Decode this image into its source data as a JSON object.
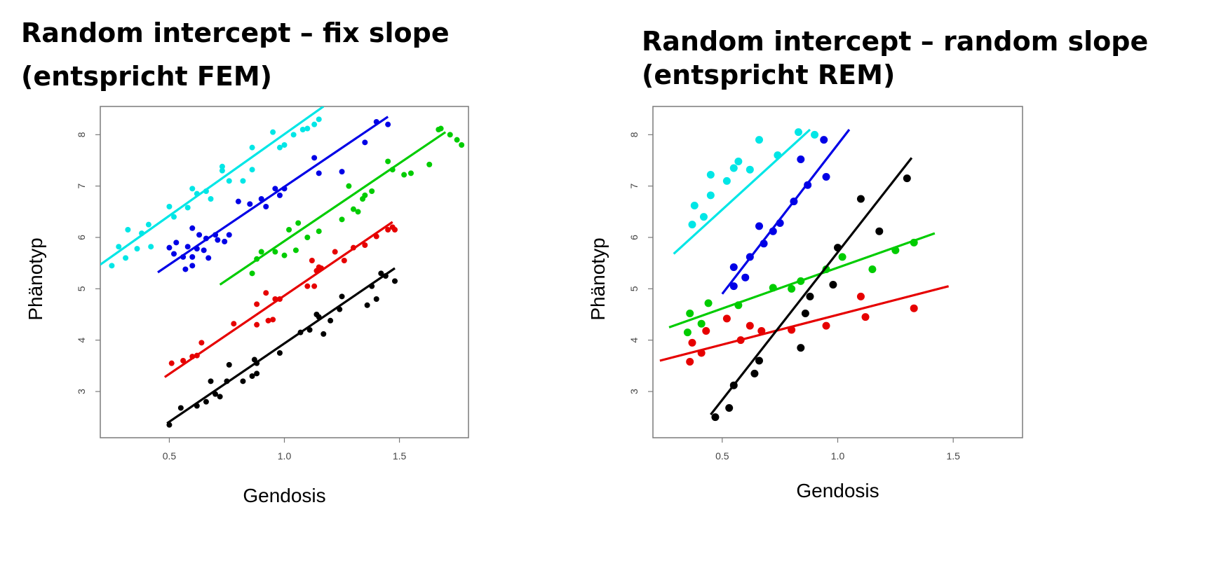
{
  "chart_data": [
    {
      "type": "scatter",
      "title": "Random intercept – fix slope",
      "subtitle": "(entspricht FEM)",
      "xlabel": "Gendosis",
      "ylabel": "Phänotyp",
      "xlim": [
        0.2,
        1.8
      ],
      "ylim": [
        2.1,
        8.55
      ],
      "xticks": [
        "0.5",
        "1.0",
        "1.5"
      ],
      "xtick_values": [
        0.5,
        1.0,
        1.5
      ],
      "yticks": [
        "3",
        "4",
        "5",
        "6",
        "7",
        "8"
      ],
      "ytick_values": [
        3,
        4,
        5,
        6,
        7,
        8
      ],
      "grid": false,
      "series": [
        {
          "color": "#00e6e6",
          "line": [
            [
              0.2,
              5.47
            ],
            [
              1.17,
              8.55
            ]
          ],
          "points": [
            [
              0.25,
              5.45
            ],
            [
              0.28,
              5.82
            ],
            [
              0.31,
              5.6
            ],
            [
              0.32,
              6.15
            ],
            [
              0.36,
              5.78
            ],
            [
              0.38,
              6.08
            ],
            [
              0.41,
              6.25
            ],
            [
              0.42,
              5.82
            ],
            [
              0.5,
              6.6
            ],
            [
              0.52,
              6.4
            ],
            [
              0.58,
              6.58
            ],
            [
              0.6,
              6.95
            ],
            [
              0.62,
              6.85
            ],
            [
              0.66,
              6.9
            ],
            [
              0.68,
              6.75
            ],
            [
              0.73,
              7.3
            ],
            [
              0.73,
              7.38
            ],
            [
              0.76,
              7.1
            ],
            [
              0.82,
              7.1
            ],
            [
              0.86,
              7.75
            ],
            [
              0.86,
              7.32
            ],
            [
              0.95,
              8.05
            ],
            [
              0.98,
              7.75
            ],
            [
              1.0,
              7.8
            ],
            [
              1.04,
              8.0
            ],
            [
              1.08,
              8.1
            ],
            [
              1.1,
              8.12
            ],
            [
              1.13,
              8.2
            ],
            [
              1.15,
              8.3
            ]
          ]
        },
        {
          "color": "#0000e6",
          "line": [
            [
              0.45,
              5.32
            ],
            [
              1.45,
              8.35
            ]
          ],
          "points": [
            [
              0.5,
              5.8
            ],
            [
              0.52,
              5.68
            ],
            [
              0.53,
              5.9
            ],
            [
              0.56,
              5.62
            ],
            [
              0.57,
              5.38
            ],
            [
              0.58,
              5.82
            ],
            [
              0.6,
              5.45
            ],
            [
              0.6,
              5.62
            ],
            [
              0.6,
              6.18
            ],
            [
              0.62,
              5.78
            ],
            [
              0.63,
              6.05
            ],
            [
              0.65,
              5.75
            ],
            [
              0.66,
              5.98
            ],
            [
              0.67,
              5.6
            ],
            [
              0.7,
              6.05
            ],
            [
              0.71,
              5.95
            ],
            [
              0.74,
              5.92
            ],
            [
              0.76,
              6.05
            ],
            [
              0.8,
              6.7
            ],
            [
              0.85,
              6.65
            ],
            [
              0.9,
              6.75
            ],
            [
              0.92,
              6.6
            ],
            [
              0.96,
              6.95
            ],
            [
              0.98,
              6.82
            ],
            [
              1.0,
              6.95
            ],
            [
              1.13,
              7.55
            ],
            [
              1.15,
              7.25
            ],
            [
              1.25,
              7.28
            ],
            [
              1.35,
              7.85
            ],
            [
              1.4,
              8.25
            ],
            [
              1.45,
              8.2
            ]
          ]
        },
        {
          "color": "#00cc00",
          "line": [
            [
              0.72,
              5.08
            ],
            [
              1.7,
              8.05
            ]
          ],
          "points": [
            [
              0.86,
              5.3
            ],
            [
              0.88,
              5.58
            ],
            [
              0.9,
              5.72
            ],
            [
              0.96,
              5.72
            ],
            [
              1.0,
              5.65
            ],
            [
              1.02,
              6.15
            ],
            [
              1.05,
              5.75
            ],
            [
              1.06,
              6.28
            ],
            [
              1.1,
              6.0
            ],
            [
              1.15,
              6.12
            ],
            [
              1.25,
              6.35
            ],
            [
              1.28,
              7.0
            ],
            [
              1.3,
              6.55
            ],
            [
              1.32,
              6.5
            ],
            [
              1.34,
              6.75
            ],
            [
              1.35,
              6.82
            ],
            [
              1.38,
              6.9
            ],
            [
              1.45,
              7.48
            ],
            [
              1.47,
              7.32
            ],
            [
              1.52,
              7.22
            ],
            [
              1.55,
              7.25
            ],
            [
              1.63,
              7.42
            ],
            [
              1.67,
              8.1
            ],
            [
              1.68,
              8.12
            ],
            [
              1.72,
              8.0
            ],
            [
              1.75,
              7.9
            ],
            [
              1.77,
              7.8
            ]
          ]
        },
        {
          "color": "#e60000",
          "line": [
            [
              0.48,
              3.28
            ],
            [
              1.47,
              6.3
            ]
          ],
          "points": [
            [
              0.51,
              3.55
            ],
            [
              0.56,
              3.6
            ],
            [
              0.6,
              3.68
            ],
            [
              0.62,
              3.7
            ],
            [
              0.64,
              3.95
            ],
            [
              0.78,
              4.32
            ],
            [
              0.88,
              4.3
            ],
            [
              0.88,
              4.7
            ],
            [
              0.92,
              4.92
            ],
            [
              0.93,
              4.38
            ],
            [
              0.95,
              4.4
            ],
            [
              0.96,
              4.8
            ],
            [
              0.98,
              4.8
            ],
            [
              1.1,
              5.05
            ],
            [
              1.12,
              5.55
            ],
            [
              1.13,
              5.05
            ],
            [
              1.14,
              5.35
            ],
            [
              1.15,
              5.42
            ],
            [
              1.16,
              5.4
            ],
            [
              1.22,
              5.72
            ],
            [
              1.26,
              5.55
            ],
            [
              1.3,
              5.8
            ],
            [
              1.35,
              5.85
            ],
            [
              1.4,
              6.02
            ],
            [
              1.45,
              6.15
            ],
            [
              1.47,
              6.2
            ],
            [
              1.48,
              6.15
            ]
          ]
        },
        {
          "color": "#000000",
          "line": [
            [
              0.49,
              2.38
            ],
            [
              1.48,
              5.4
            ]
          ],
          "points": [
            [
              0.5,
              2.35
            ],
            [
              0.55,
              2.68
            ],
            [
              0.62,
              2.72
            ],
            [
              0.66,
              2.8
            ],
            [
              0.68,
              3.2
            ],
            [
              0.7,
              2.95
            ],
            [
              0.72,
              2.9
            ],
            [
              0.75,
              3.2
            ],
            [
              0.76,
              3.52
            ],
            [
              0.82,
              3.2
            ],
            [
              0.86,
              3.3
            ],
            [
              0.87,
              3.62
            ],
            [
              0.88,
              3.35
            ],
            [
              0.88,
              3.55
            ],
            [
              0.98,
              3.75
            ],
            [
              1.07,
              4.15
            ],
            [
              1.11,
              4.2
            ],
            [
              1.14,
              4.5
            ],
            [
              1.15,
              4.45
            ],
            [
              1.17,
              4.12
            ],
            [
              1.2,
              4.38
            ],
            [
              1.24,
              4.6
            ],
            [
              1.25,
              4.85
            ],
            [
              1.36,
              4.68
            ],
            [
              1.38,
              5.05
            ],
            [
              1.4,
              4.8
            ],
            [
              1.42,
              5.3
            ],
            [
              1.44,
              5.25
            ],
            [
              1.48,
              5.15
            ]
          ]
        }
      ]
    },
    {
      "type": "scatter",
      "title": "Random intercept – random slope",
      "subtitle": "(entspricht REM)",
      "xlabel": "Gendosis",
      "ylabel": "Phänotyp",
      "xlim": [
        0.2,
        1.8
      ],
      "ylim": [
        2.1,
        8.55
      ],
      "xticks": [
        "0.5",
        "1.0",
        "1.5"
      ],
      "xtick_values": [
        0.5,
        1.0,
        1.5
      ],
      "yticks": [
        "3",
        "4",
        "5",
        "6",
        "7",
        "8"
      ],
      "ytick_values": [
        3,
        4,
        5,
        6,
        7,
        8
      ],
      "grid": false,
      "series": [
        {
          "color": "#00e6e6",
          "line": [
            [
              0.29,
              5.68
            ],
            [
              0.88,
              8.1
            ]
          ],
          "points": [
            [
              0.37,
              6.25
            ],
            [
              0.38,
              6.62
            ],
            [
              0.42,
              6.4
            ],
            [
              0.45,
              6.82
            ],
            [
              0.45,
              7.22
            ],
            [
              0.52,
              7.1
            ],
            [
              0.55,
              7.35
            ],
            [
              0.57,
              7.48
            ],
            [
              0.62,
              7.32
            ],
            [
              0.66,
              7.9
            ],
            [
              0.74,
              7.6
            ],
            [
              0.83,
              8.05
            ],
            [
              0.9,
              8.0
            ]
          ]
        },
        {
          "color": "#0000e6",
          "line": [
            [
              0.5,
              4.9
            ],
            [
              1.05,
              8.1
            ]
          ],
          "points": [
            [
              0.55,
              5.05
            ],
            [
              0.55,
              5.42
            ],
            [
              0.6,
              5.22
            ],
            [
              0.62,
              5.62
            ],
            [
              0.66,
              6.22
            ],
            [
              0.68,
              5.88
            ],
            [
              0.72,
              6.12
            ],
            [
              0.75,
              6.28
            ],
            [
              0.81,
              6.7
            ],
            [
              0.84,
              7.52
            ],
            [
              0.87,
              7.02
            ],
            [
              0.94,
              7.9
            ],
            [
              0.95,
              7.18
            ]
          ]
        },
        {
          "color": "#00cc00",
          "line": [
            [
              0.27,
              4.25
            ],
            [
              1.42,
              6.08
            ]
          ],
          "points": [
            [
              0.35,
              4.15
            ],
            [
              0.36,
              4.52
            ],
            [
              0.41,
              4.32
            ],
            [
              0.44,
              4.72
            ],
            [
              0.57,
              4.68
            ],
            [
              0.72,
              5.02
            ],
            [
              0.8,
              5.0
            ],
            [
              0.84,
              5.15
            ],
            [
              0.95,
              5.38
            ],
            [
              1.02,
              5.62
            ],
            [
              1.15,
              5.38
            ],
            [
              1.25,
              5.75
            ],
            [
              1.33,
              5.9
            ]
          ]
        },
        {
          "color": "#e60000",
          "line": [
            [
              0.23,
              3.6
            ],
            [
              1.48,
              5.05
            ]
          ],
          "points": [
            [
              0.36,
              3.58
            ],
            [
              0.37,
              3.95
            ],
            [
              0.41,
              3.75
            ],
            [
              0.43,
              4.18
            ],
            [
              0.52,
              4.42
            ],
            [
              0.58,
              4.0
            ],
            [
              0.62,
              4.28
            ],
            [
              0.67,
              4.18
            ],
            [
              0.8,
              4.2
            ],
            [
              0.95,
              4.28
            ],
            [
              1.1,
              4.85
            ],
            [
              1.12,
              4.45
            ],
            [
              1.33,
              4.62
            ]
          ]
        },
        {
          "color": "#000000",
          "line": [
            [
              0.45,
              2.55
            ],
            [
              1.32,
              7.55
            ]
          ],
          "points": [
            [
              0.47,
              2.5
            ],
            [
              0.53,
              2.68
            ],
            [
              0.55,
              3.12
            ],
            [
              0.64,
              3.35
            ],
            [
              0.66,
              3.6
            ],
            [
              0.84,
              3.85
            ],
            [
              0.86,
              4.52
            ],
            [
              0.88,
              4.85
            ],
            [
              0.98,
              5.08
            ],
            [
              1.0,
              5.8
            ],
            [
              1.1,
              6.75
            ],
            [
              1.18,
              6.12
            ],
            [
              1.3,
              7.15
            ]
          ]
        }
      ]
    }
  ]
}
